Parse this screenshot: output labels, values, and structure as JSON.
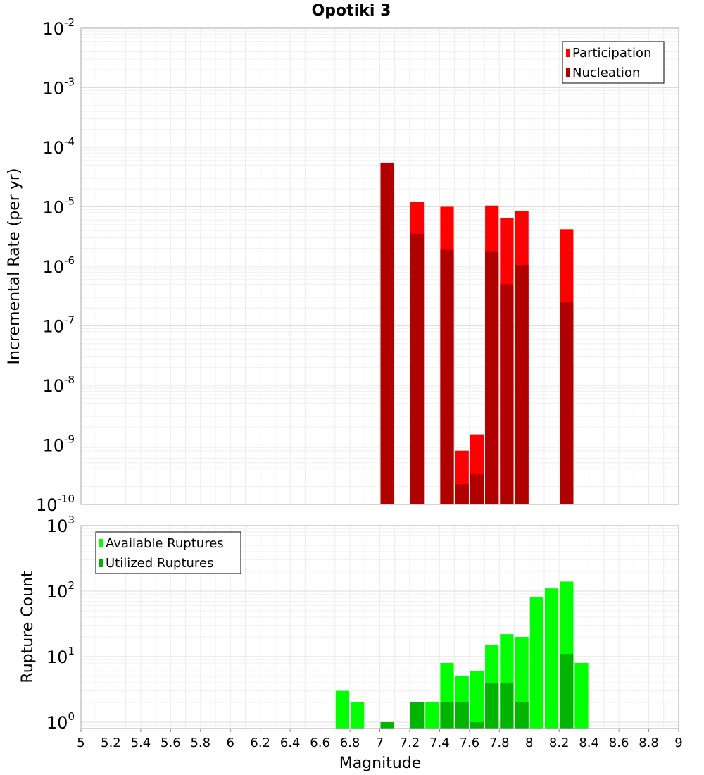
{
  "chart_data": [
    {
      "type": "bar",
      "panel": "top",
      "title": "Opotiki 3",
      "xlabel": "",
      "ylabel": "Incremental Rate (per yr)",
      "yscale": "log",
      "ylim": [
        1e-10,
        0.01
      ],
      "yticks": [
        {
          "base": "10",
          "exp": "-10"
        },
        {
          "base": "10",
          "exp": "-9"
        },
        {
          "base": "10",
          "exp": "-8"
        },
        {
          "base": "10",
          "exp": "-7"
        },
        {
          "base": "10",
          "exp": "-6"
        },
        {
          "base": "10",
          "exp": "-5"
        },
        {
          "base": "10",
          "exp": "-4"
        },
        {
          "base": "10",
          "exp": "-3"
        },
        {
          "base": "10",
          "exp": "-2"
        }
      ],
      "xlim": [
        5,
        9
      ],
      "bar_width": 0.1,
      "grid": true,
      "legend_position": "top-right",
      "series": [
        {
          "name": "Participation",
          "color": "#ff0000",
          "x": [
            7.05,
            7.25,
            7.45,
            7.55,
            7.65,
            7.75,
            7.85,
            7.95,
            8.25
          ],
          "values": [
            5.5e-05,
            1.2e-05,
            1e-05,
            8e-10,
            1.5e-09,
            1.05e-05,
            6.5e-06,
            8.5e-06,
            4.2e-06
          ]
        },
        {
          "name": "Nucleation",
          "color": "#b00000",
          "x": [
            7.05,
            7.25,
            7.45,
            7.55,
            7.65,
            7.75,
            7.85,
            7.95,
            8.25
          ],
          "values": [
            5.5e-05,
            3.5e-06,
            1.9e-06,
            2.2e-10,
            3.2e-10,
            1.8e-06,
            5e-07,
            1.05e-06,
            2.5e-07
          ]
        }
      ]
    },
    {
      "type": "bar",
      "panel": "bottom",
      "xlabel": "Magnitude",
      "ylabel": "Rupture Count",
      "yscale": "log",
      "ylim": [
        0.8,
        1000
      ],
      "yticks": [
        {
          "base": "10",
          "exp": "0"
        },
        {
          "base": "10",
          "exp": "1"
        },
        {
          "base": "10",
          "exp": "2"
        },
        {
          "base": "10",
          "exp": "3"
        }
      ],
      "xlim": [
        5,
        9
      ],
      "xticks": [
        "5",
        "5.2",
        "5.4",
        "5.6",
        "5.8",
        "6",
        "6.2",
        "6.4",
        "6.6",
        "6.8",
        "7",
        "7.2",
        "7.4",
        "7.6",
        "7.8",
        "8",
        "8.2",
        "8.4",
        "8.6",
        "8.8",
        "9"
      ],
      "bar_width": 0.1,
      "grid": true,
      "legend_position": "top-left",
      "series": [
        {
          "name": "Available Ruptures",
          "color": "#00ff00",
          "x": [
            6.75,
            6.85,
            7.05,
            7.25,
            7.35,
            7.45,
            7.55,
            7.65,
            7.75,
            7.85,
            7.95,
            8.05,
            8.15,
            8.25,
            8.35
          ],
          "values": [
            3,
            2,
            1,
            2,
            2,
            8,
            5,
            6,
            15,
            22,
            20,
            80,
            110,
            140,
            8
          ]
        },
        {
          "name": "Utilized Ruptures",
          "color": "#00b400",
          "x": [
            7.05,
            7.25,
            7.45,
            7.55,
            7.65,
            7.75,
            7.85,
            7.95,
            8.25
          ],
          "values": [
            1,
            2,
            2,
            2,
            1,
            4,
            4,
            2,
            11
          ]
        }
      ]
    }
  ]
}
